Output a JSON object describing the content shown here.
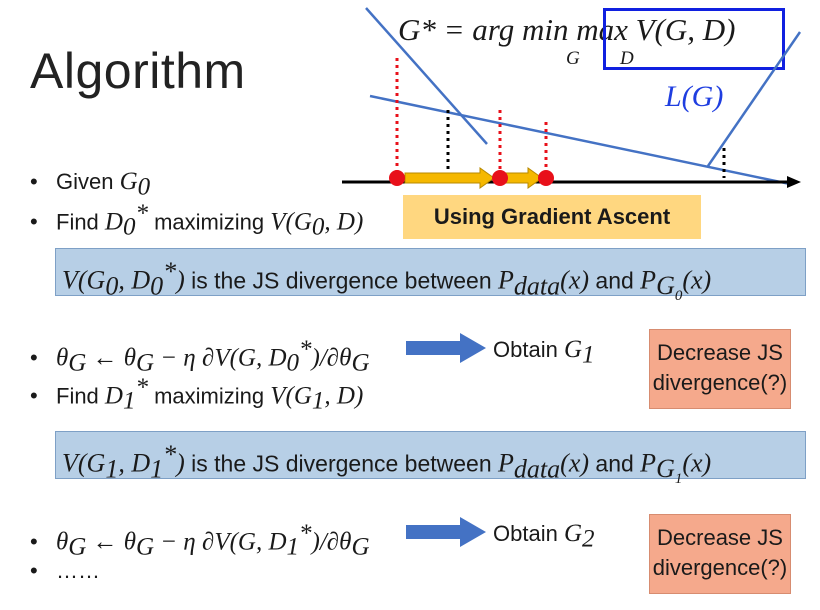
{
  "title": "Algorithm",
  "formula": {
    "lhs": "G*",
    "eq": "= arg min max V(G, D)",
    "sub_min": "G",
    "sub_max": "D"
  },
  "curve_label": "L(G)",
  "bullets": {
    "b1_text": "Given",
    "b1_math": "G",
    "b1_sub": "0",
    "b2_text": "Find",
    "b2_text2": "maximizing",
    "b2_math_a": "D",
    "b2_sub_a": "0",
    "b2_sup_a": "*",
    "b2_math_b": "V(G",
    "b2_sub_b": "0",
    "b2_math_b_end": ", D)",
    "b3_math": "θ",
    "b3_sub": "G",
    "b3_rest": "← θ",
    "b3_sub2": "G",
    "b3_rest2": "− η ∂V(G, D",
    "b3_sub3": "0",
    "b3_sup3": "*",
    "b3_rest3": ")/∂θ",
    "b3_sub4": "G",
    "b3_obtain": "Obtain",
    "b3_obtain_math": "G",
    "b3_obtain_sub": "1",
    "b4_text": "Find",
    "b4_text2": "maximizing",
    "b4_math_a": "D",
    "b4_sub_a": "1",
    "b4_sup_a": "*",
    "b4_math_b": "V(G",
    "b4_sub_b": "1",
    "b4_math_b_end": ", D)",
    "b5_math": "θ",
    "b5_sub": "G",
    "b5_rest": "← θ",
    "b5_sub2": "G",
    "b5_rest2": "− η ∂V(G, D",
    "b5_sub3": "1",
    "b5_sup3": "*",
    "b5_rest3": ")/∂θ",
    "b5_sub4": "G",
    "b5_obtain": "Obtain",
    "b5_obtain_math": "G",
    "b5_obtain_sub": "2",
    "b6_text": "……"
  },
  "gradient_ascent": "Using Gradient Ascent",
  "js_box_1": {
    "m1": "V(G",
    "s1": "0",
    "m2": ", D",
    "s2": "0",
    "sup2": "*",
    "m3": ")",
    "text": " is the JS divergence between ",
    "p1": "P",
    "p1sub": "data",
    "p1rest": "(x)",
    "and": " and ",
    "p2": "P",
    "p2sub": "G",
    "p2subsub": "0",
    "p2rest": "(x)"
  },
  "js_box_2": {
    "m1": "V(G",
    "s1": "1",
    "m2": ", D",
    "s2": "1",
    "sup2": "*",
    "m3": ")",
    "text": " is the JS divergence between ",
    "p1": "P",
    "p1sub": "data",
    "p1rest": "(x)",
    "and": " and ",
    "p2": "P",
    "p2sub": "G",
    "p2subsub": "1",
    "p2rest": "(x)"
  },
  "decrease_1": {
    "line1": "Decrease JS",
    "line2": "divergence(?)"
  },
  "decrease_2": {
    "line1": "Decrease JS",
    "line2": "divergence(?)"
  },
  "colors": {
    "blue_line": "#4472c4",
    "red_dot": "#e8101a",
    "yellow_arrow": "#f5b800",
    "blue_arrow": "#4472c4",
    "box_blue": "#b7cfe6",
    "box_salmon": "#f5a98c",
    "box_yellow": "#ffd780"
  }
}
